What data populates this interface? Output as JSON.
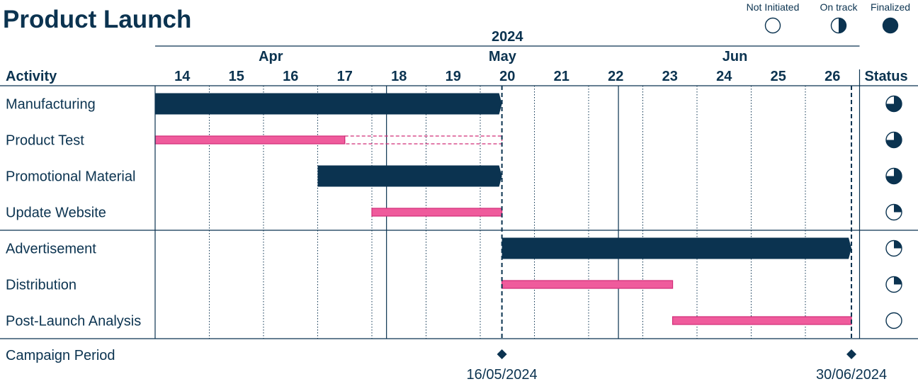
{
  "title": "Product Launch",
  "legend": [
    {
      "label": "Not Initiated",
      "fraction": 0
    },
    {
      "label": "On track",
      "fraction": 0.5
    },
    {
      "label": "Finalized",
      "fraction": 1
    }
  ],
  "colors": {
    "primary": "#0b3350",
    "accent": "#ef5b9c",
    "accent_border": "#d12d78",
    "grid": "#0b3350"
  },
  "chart_data": {
    "type": "gantt",
    "title": "Product Launch",
    "year_label": "2024",
    "months": [
      {
        "label": "Apr",
        "start_week": 14,
        "end_week": 18.27
      },
      {
        "label": "May",
        "start_week": 18.27,
        "end_week": 22.55
      },
      {
        "label": "Jun",
        "start_week": 22.55,
        "end_week": 26.85
      }
    ],
    "weeks": [
      14,
      15,
      16,
      17,
      18,
      19,
      20,
      21,
      22,
      23,
      24,
      25,
      26
    ],
    "activity_header": "Activity",
    "status_header": "Status",
    "groups": [
      {
        "activities": [
          {
            "name": "Manufacturing",
            "start": 14,
            "end": 20.4,
            "style": "dark",
            "status": 0.75
          },
          {
            "name": "Product Test",
            "start": 14,
            "end": 17.5,
            "planned_end": 20.4,
            "style": "pink",
            "status": 0.75
          },
          {
            "name": "Promotional Material",
            "start": 17,
            "end": 20.4,
            "style": "dark",
            "status": 0.75
          },
          {
            "name": "Update Website",
            "start": 18,
            "end": 20.4,
            "style": "pink",
            "status": 0.25
          }
        ]
      },
      {
        "activities": [
          {
            "name": "Advertisement",
            "start": 20.4,
            "end": 26.85,
            "style": "dark",
            "status": 0.25
          },
          {
            "name": "Distribution",
            "start": 20.4,
            "end": 23.55,
            "style": "pink",
            "status": 0.25
          },
          {
            "name": "Post-Launch Analysis",
            "start": 23.55,
            "end": 26.85,
            "style": "pink",
            "status": 0
          }
        ]
      }
    ],
    "milestones": {
      "label": "Campaign Period",
      "items": [
        {
          "week": 20.4,
          "date": "16/05/2024"
        },
        {
          "week": 26.85,
          "date": "30/06/2024"
        }
      ]
    }
  }
}
